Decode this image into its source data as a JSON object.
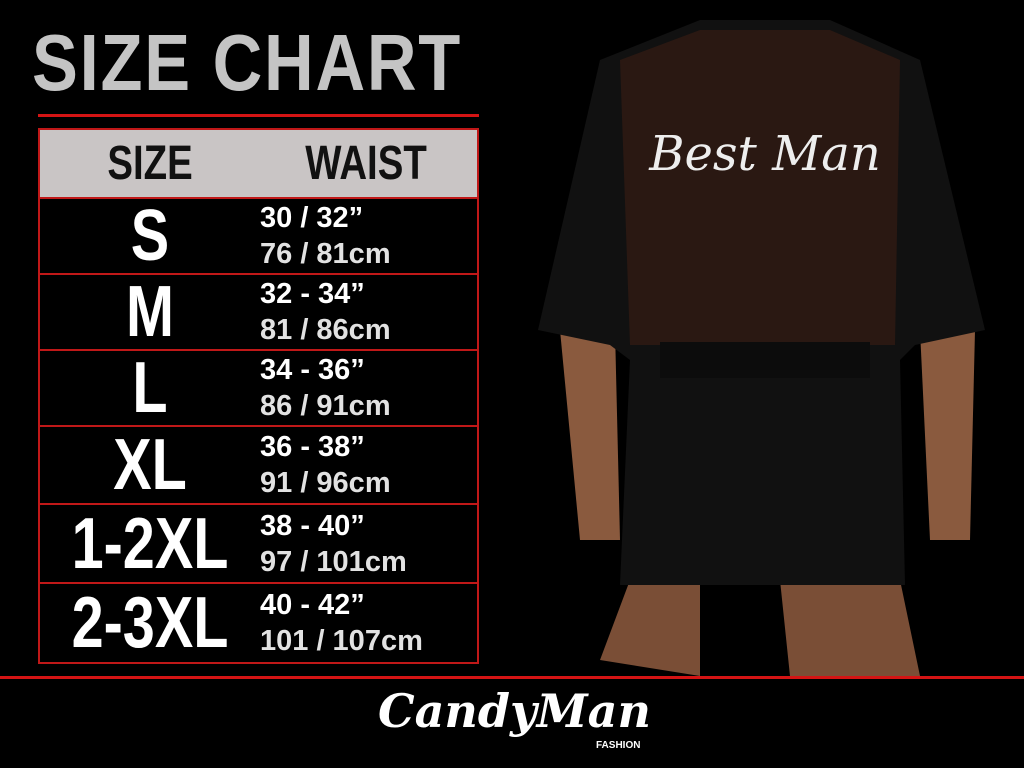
{
  "title": "SIZE CHART",
  "table": {
    "headers": [
      "SIZE",
      "WAIST"
    ],
    "rows": [
      {
        "size": "S",
        "in": "30 / 32”",
        "cm": "76 / 81cm"
      },
      {
        "size": "M",
        "in": "32 - 34”",
        "cm": "81 / 86cm"
      },
      {
        "size": "L",
        "in": "34 - 36”",
        "cm": "86 / 91cm"
      },
      {
        "size": "XL",
        "in": "36 - 38”",
        "cm": "91 / 96cm"
      },
      {
        "size": "1-2XL",
        "in": "38 - 40”",
        "cm": "97 / 101cm"
      },
      {
        "size": "2-3XL",
        "in": "40 - 42”",
        "cm": "101 / 107cm"
      }
    ]
  },
  "product": {
    "back_print": "Best Man"
  },
  "brand": {
    "name": "CandyMan",
    "sub": "FASHION"
  },
  "colors": {
    "accent": "#d41414",
    "header_bg": "#c9c5c5",
    "title": "#c4c4c4"
  }
}
